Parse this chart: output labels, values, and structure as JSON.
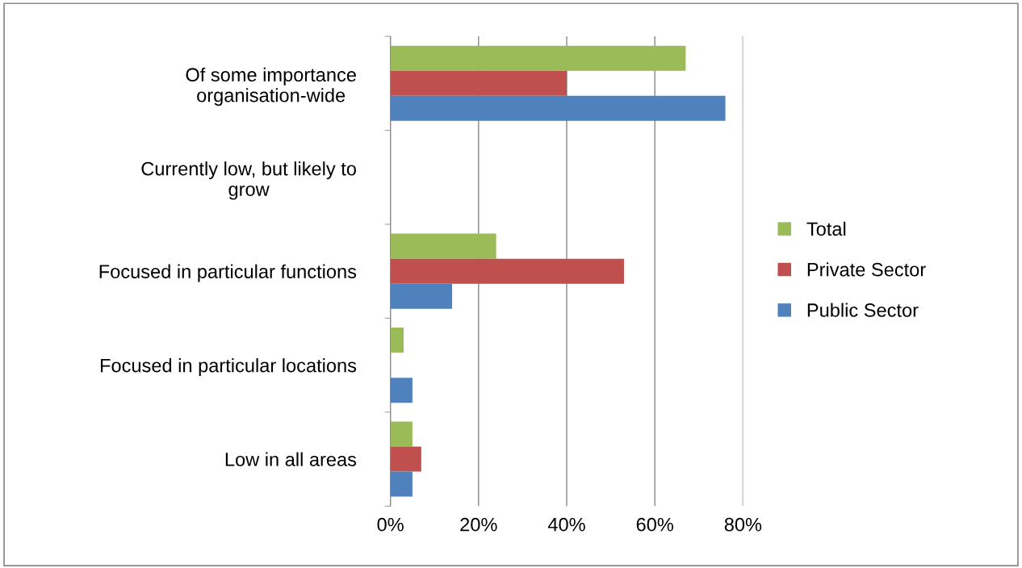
{
  "chart_data": {
    "type": "bar",
    "orientation": "horizontal",
    "categories": [
      "Of some importance\norganisation-wide",
      "Currently low, but likely to\ngrow",
      "Focused in particular functions",
      "Focused in particular locations",
      "Low in all areas"
    ],
    "series": [
      {
        "name": "Total",
        "color": "#9bbb59",
        "values": [
          67,
          0,
          24,
          3,
          5
        ]
      },
      {
        "name": "Private Sector",
        "color": "#c0504d",
        "values": [
          40,
          0,
          53,
          0,
          7
        ]
      },
      {
        "name": "Public Sector",
        "color": "#4f81bd",
        "values": [
          76,
          0,
          14,
          5,
          5
        ]
      }
    ],
    "xlim": [
      0,
      80
    ],
    "xticks": [
      {
        "value": 0,
        "label": "0%"
      },
      {
        "value": 20,
        "label": "20%"
      },
      {
        "value": 40,
        "label": "40%"
      },
      {
        "value": 60,
        "label": "60%"
      },
      {
        "value": 80,
        "label": "80%"
      }
    ],
    "grid": "x",
    "legend": "right"
  }
}
